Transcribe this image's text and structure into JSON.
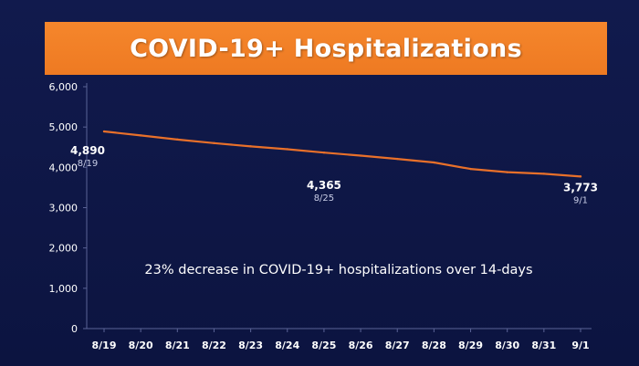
{
  "title": "COVID-19+ Hospitalizations",
  "colors": {
    "background": "#0e1746",
    "banner": "#f28028",
    "line": "#e8702a",
    "grid": "#2a3468",
    "text": "#ffffff",
    "subtext": "#c8cde6"
  },
  "chart_data": {
    "type": "line",
    "title": "COVID-19+ Hospitalizations",
    "xlabel": "",
    "ylabel": "",
    "categories": [
      "8/19",
      "8/20",
      "8/21",
      "8/22",
      "8/23",
      "8/24",
      "8/25",
      "8/26",
      "8/27",
      "8/28",
      "8/29",
      "8/30",
      "8/31",
      "9/1"
    ],
    "series": [
      {
        "values": [
          4890,
          4790,
          4690,
          4600,
          4520,
          4450,
          4365,
          4290,
          4210,
          4120,
          3960,
          3880,
          3840,
          3773
        ]
      }
    ],
    "ylim": [
      0,
      6000
    ],
    "yticks": [
      0,
      1000,
      2000,
      3000,
      4000,
      5000,
      6000
    ],
    "ytick_labels": [
      "0",
      "1,000",
      "2,000",
      "3,000",
      "4,000",
      "5,000",
      "6,000"
    ],
    "grid": false,
    "data_labels": [
      {
        "index": 0,
        "value": "4,890",
        "date": "8/19"
      },
      {
        "index": 6,
        "value": "4,365",
        "date": "8/25"
      },
      {
        "index": 13,
        "value": "3,773",
        "date": "9/1"
      }
    ],
    "annotation": "23% decrease in COVID-19+ hospitalizations over 14-days"
  }
}
